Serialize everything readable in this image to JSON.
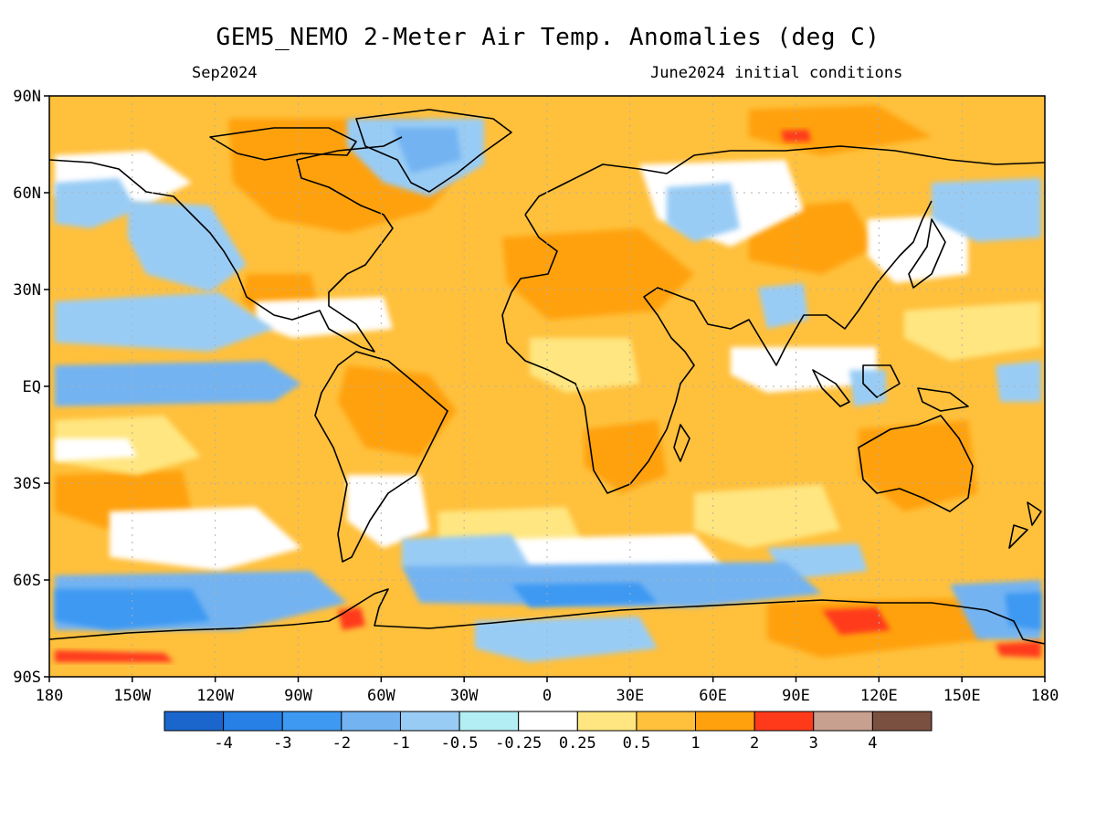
{
  "header": {
    "title": "GEM5_NEMO 2-Meter Air Temp. Anomalies (deg C)",
    "valid_month": "Sep2024",
    "initial_conditions": "June2024 initial conditions"
  },
  "map": {
    "projection": "equirectangular",
    "lon_range": [
      -180,
      180
    ],
    "lat_range": [
      -90,
      90
    ],
    "grid": true,
    "background_anomaly_color": "#ffc03c",
    "lat_ticks": [
      {
        "lat": 90,
        "label": "90N"
      },
      {
        "lat": 60,
        "label": "60N"
      },
      {
        "lat": 30,
        "label": "30N"
      },
      {
        "lat": 0,
        "label": "EQ"
      },
      {
        "lat": -30,
        "label": "30S"
      },
      {
        "lat": -60,
        "label": "60S"
      },
      {
        "lat": -90,
        "label": "90S"
      }
    ],
    "lon_ticks": [
      {
        "lon": -180,
        "label": "180"
      },
      {
        "lon": -150,
        "label": "150W"
      },
      {
        "lon": -120,
        "label": "120W"
      },
      {
        "lon": -90,
        "label": "90W"
      },
      {
        "lon": -60,
        "label": "60W"
      },
      {
        "lon": -30,
        "label": "30W"
      },
      {
        "lon": 0,
        "label": "0"
      },
      {
        "lon": 30,
        "label": "30E"
      },
      {
        "lon": 60,
        "label": "60E"
      },
      {
        "lon": 90,
        "label": "90E"
      },
      {
        "lon": 120,
        "label": "120E"
      },
      {
        "lon": 150,
        "label": "150E"
      },
      {
        "lon": 180,
        "label": "180"
      }
    ]
  },
  "colorbar": {
    "colors": [
      "#1a66cc",
      "#2680e6",
      "#3d99f2",
      "#73b3f2",
      "#99ccf5",
      "#b3eef5",
      "#ffffff",
      "#ffe680",
      "#ffc03c",
      "#ffa10c",
      "#ff3a1a",
      "#c8a090",
      "#7a5040"
    ],
    "boundaries": [
      "-4",
      "-3",
      "-2",
      "-1",
      "-0.5",
      "-0.25",
      "0.25",
      "0.5",
      "1",
      "2",
      "3",
      "4"
    ]
  }
}
